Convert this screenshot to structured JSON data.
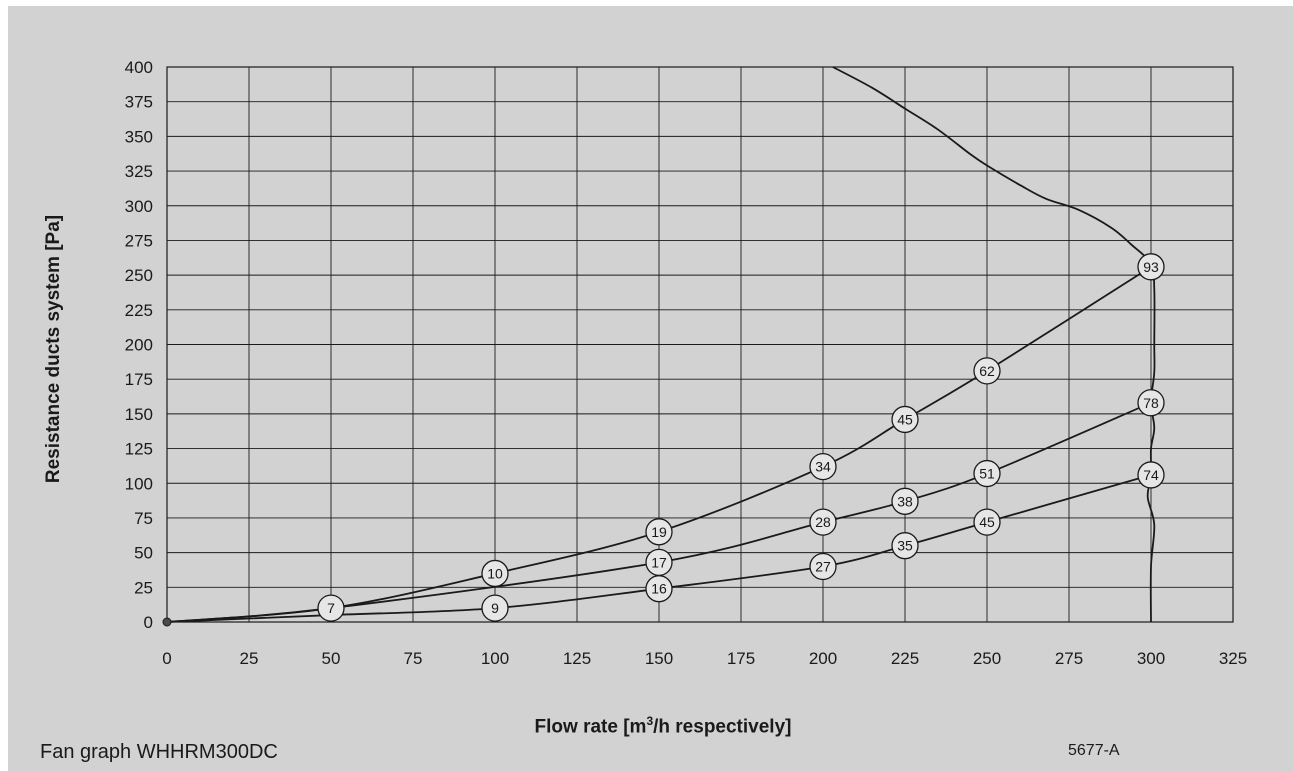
{
  "chart_data": {
    "type": "line",
    "title": "",
    "xlabel_main": "Flow rate [m",
    "xlabel_sup": "3",
    "xlabel_rest": "/h respectively]",
    "ylabel": "Resistance ducts system [Pa]",
    "xlim": [
      0,
      325
    ],
    "ylim": [
      0,
      400
    ],
    "x_ticks": [
      0,
      25,
      50,
      75,
      100,
      125,
      150,
      175,
      200,
      225,
      250,
      275,
      300,
      325
    ],
    "y_ticks": [
      0,
      25,
      50,
      75,
      100,
      125,
      150,
      175,
      200,
      225,
      250,
      275,
      300,
      325,
      350,
      375,
      400
    ],
    "grid": true,
    "colors": {
      "background": "#d2d2d2",
      "line": "#1a1a1a",
      "marker_fill": "#e6e6e6"
    },
    "series": [
      {
        "points": [
          [
            0,
            0
          ],
          [
            50,
            10
          ],
          [
            100,
            35
          ],
          [
            150,
            65
          ],
          [
            200,
            112
          ],
          [
            225,
            146
          ],
          [
            250,
            181
          ],
          [
            300,
            256
          ]
        ],
        "labels": [
          [
            "7",
            50,
            10
          ],
          [
            "10",
            100,
            35
          ],
          [
            "19",
            150,
            65
          ],
          [
            "34",
            200,
            112
          ],
          [
            "45",
            225,
            146
          ],
          [
            "62",
            250,
            181
          ],
          [
            "93",
            300,
            256
          ]
        ]
      },
      {
        "points": [
          [
            0,
            0
          ],
          [
            50,
            10
          ],
          [
            150,
            43
          ],
          [
            200,
            72
          ],
          [
            225,
            87
          ],
          [
            250,
            107
          ],
          [
            300,
            158
          ]
        ],
        "labels": [
          [
            "17",
            150,
            43
          ],
          [
            "28",
            200,
            72
          ],
          [
            "38",
            225,
            87
          ],
          [
            "51",
            250,
            107
          ],
          [
            "78",
            300,
            158
          ]
        ]
      },
      {
        "points": [
          [
            0,
            0
          ],
          [
            50,
            5
          ],
          [
            100,
            10
          ],
          [
            150,
            24
          ],
          [
            200,
            40
          ],
          [
            225,
            55
          ],
          [
            250,
            72
          ],
          [
            300,
            106
          ]
        ],
        "labels": [
          [
            "9",
            100,
            10
          ],
          [
            "16",
            150,
            24
          ],
          [
            "27",
            200,
            40
          ],
          [
            "35",
            225,
            55
          ],
          [
            "45",
            250,
            72
          ],
          [
            "74",
            300,
            106
          ]
        ]
      },
      {
        "points": [
          [
            203,
            400
          ],
          [
            215,
            385
          ],
          [
            225,
            370
          ],
          [
            235,
            355
          ],
          [
            245,
            337
          ],
          [
            250,
            329
          ],
          [
            260,
            315
          ],
          [
            268,
            305
          ],
          [
            278,
            297
          ],
          [
            288,
            284
          ],
          [
            294,
            272
          ],
          [
            300,
            258
          ],
          [
            301,
            240
          ],
          [
            301,
            200
          ],
          [
            301,
            180
          ],
          [
            300,
            158
          ],
          [
            301,
            140
          ],
          [
            300,
            125
          ],
          [
            300,
            106
          ],
          [
            299,
            90
          ],
          [
            301,
            70
          ],
          [
            300,
            40
          ],
          [
            300,
            0
          ]
        ],
        "labels": []
      }
    ]
  },
  "footer": {
    "caption": "Fan graph WHHRM300DC",
    "code": "5677-A"
  }
}
